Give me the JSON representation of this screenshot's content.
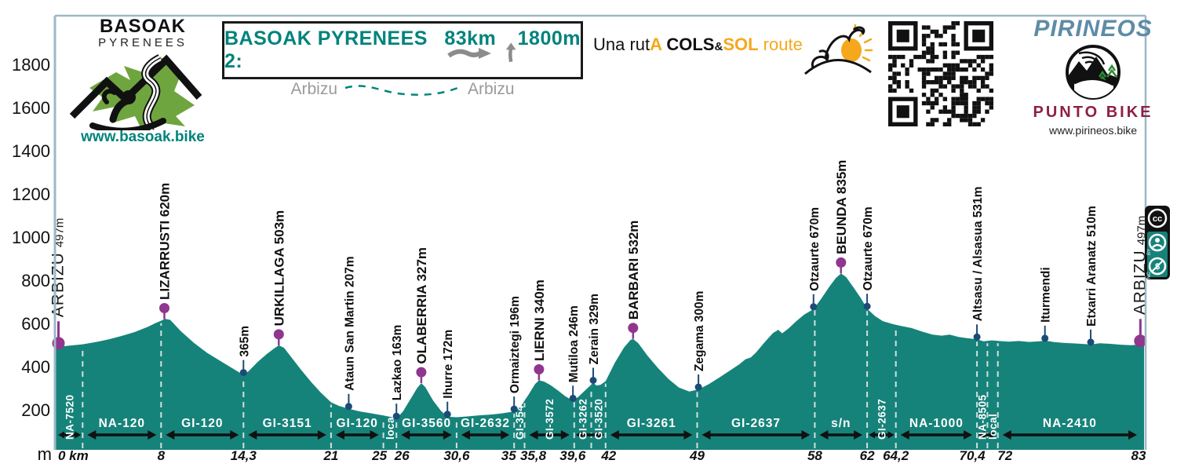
{
  "colors": {
    "teal": "#16837A",
    "title_teal": "#00837C",
    "frame": "#9DB8C6",
    "purple": "#90368F",
    "navy": "#1B4B77",
    "orange": "#F5A81C",
    "gray_text": "#9A9A9A",
    "arrow_gray": "#8C8C8C",
    "pirineos_blue": "#5E8CA7",
    "maroon": "#8E2045",
    "green": "#6FA53F",
    "dash": "#CFE0DF",
    "road_text": "#FFFFFF"
  },
  "brand_left": {
    "name": "BASOAK",
    "subtitle": "PYRENEES",
    "url": "www.basoak.bike"
  },
  "title_box": {
    "title": "BASOAK PYRENEES 2:",
    "distance": "83km",
    "elevation_gain": "1800m",
    "start": "Arbizu",
    "end": "Arbizu"
  },
  "tagline": {
    "part1": "Una rut",
    "part2": "A",
    "part3": " COLS",
    "amp": "&",
    "part4": "SOL",
    "part5": " route"
  },
  "brand_right": {
    "name": "PIRINEOS",
    "subtitle": "PUNTO BIKE",
    "url": "www.pirineos.bike"
  },
  "license_badge": {
    "cc": "cc",
    "by": "BY",
    "nc": "NC"
  },
  "chart_data": {
    "type": "area",
    "title": "BASOAK PYRENEES 2: 83km +1800m (Arbizu - Arbizu)",
    "xlabel": "km",
    "ylabel": "m",
    "xlim_km": [
      0,
      83
    ],
    "ylim": [
      0,
      1900
    ],
    "yticks": [
      200,
      400,
      600,
      800,
      1000,
      1200,
      1400,
      1600,
      1800
    ],
    "profile_km_elev": [
      [
        0,
        497
      ],
      [
        0.5,
        498
      ],
      [
        1,
        501
      ],
      [
        2,
        507
      ],
      [
        3,
        517
      ],
      [
        4,
        530
      ],
      [
        5,
        546
      ],
      [
        6,
        564
      ],
      [
        7,
        588
      ],
      [
        7.6,
        606
      ],
      [
        8,
        616
      ],
      [
        8.3,
        625
      ],
      [
        8.7,
        620
      ],
      [
        9.5,
        568
      ],
      [
        10.5,
        514
      ],
      [
        11.5,
        468
      ],
      [
        12.5,
        431
      ],
      [
        13.4,
        398
      ],
      [
        14,
        376
      ],
      [
        14.3,
        365
      ],
      [
        14.7,
        383
      ],
      [
        15.4,
        426
      ],
      [
        16.1,
        463
      ],
      [
        16.7,
        490
      ],
      [
        17,
        502
      ],
      [
        17.4,
        491
      ],
      [
        18,
        444
      ],
      [
        18.7,
        389
      ],
      [
        19.5,
        331
      ],
      [
        20.2,
        284
      ],
      [
        21,
        238
      ],
      [
        21.6,
        222
      ],
      [
        22.35,
        208
      ],
      [
        23.2,
        196
      ],
      [
        24.1,
        187
      ],
      [
        25,
        177
      ],
      [
        25.6,
        170
      ],
      [
        26,
        163
      ],
      [
        26.5,
        196
      ],
      [
        27.1,
        256
      ],
      [
        27.6,
        306
      ],
      [
        27.9,
        327
      ],
      [
        28.2,
        309
      ],
      [
        28.8,
        247
      ],
      [
        29.4,
        199
      ],
      [
        29.9,
        172
      ],
      [
        30.6,
        169
      ],
      [
        31.5,
        173
      ],
      [
        32.4,
        178
      ],
      [
        33.3,
        182
      ],
      [
        34.2,
        188
      ],
      [
        35,
        196
      ],
      [
        35.5,
        219
      ],
      [
        36.1,
        273
      ],
      [
        36.6,
        323
      ],
      [
        36.9,
        340
      ],
      [
        37.3,
        334
      ],
      [
        37.8,
        317
      ],
      [
        38.4,
        291
      ],
      [
        38.9,
        267
      ],
      [
        39.5,
        246
      ],
      [
        39.9,
        263
      ],
      [
        40.5,
        297
      ],
      [
        41.05,
        329
      ],
      [
        41.3,
        316
      ],
      [
        41.6,
        319
      ],
      [
        42,
        336
      ],
      [
        42.7,
        421
      ],
      [
        43.4,
        492
      ],
      [
        43.9,
        527
      ],
      [
        44.1,
        532
      ],
      [
        44.5,
        512
      ],
      [
        45.2,
        454
      ],
      [
        46,
        397
      ],
      [
        46.8,
        347
      ],
      [
        47.6,
        307
      ],
      [
        48.4,
        288
      ],
      [
        49.1,
        298
      ],
      [
        49.9,
        323
      ],
      [
        50.7,
        353
      ],
      [
        51.5,
        385
      ],
      [
        52.2,
        413
      ],
      [
        52.7,
        438
      ],
      [
        53.1,
        446
      ],
      [
        53.5,
        469
      ],
      [
        54.2,
        519
      ],
      [
        54.8,
        559
      ],
      [
        55.2,
        574
      ],
      [
        55.5,
        558
      ],
      [
        56,
        581
      ],
      [
        56.6,
        615
      ],
      [
        57.2,
        645
      ],
      [
        57.9,
        670
      ],
      [
        58.5,
        719
      ],
      [
        59.1,
        773
      ],
      [
        59.6,
        813
      ],
      [
        60,
        835
      ],
      [
        60.4,
        818
      ],
      [
        61,
        767
      ],
      [
        61.5,
        722
      ],
      [
        62,
        672
      ],
      [
        62.6,
        638
      ],
      [
        63.2,
        614
      ],
      [
        64,
        600
      ],
      [
        64.6,
        592
      ],
      [
        65.4,
        582
      ],
      [
        66.2,
        566
      ],
      [
        67,
        552
      ],
      [
        67.7,
        547
      ],
      [
        68.3,
        552
      ],
      [
        69,
        541
      ],
      [
        69.7,
        535
      ],
      [
        70.4,
        530
      ],
      [
        70.9,
        521
      ],
      [
        71.5,
        525
      ],
      [
        72,
        523
      ],
      [
        72.8,
        519
      ],
      [
        73.6,
        522
      ],
      [
        74.4,
        518
      ],
      [
        75.2,
        521
      ],
      [
        75.6,
        524
      ],
      [
        76.3,
        517
      ],
      [
        77.1,
        513
      ],
      [
        77.9,
        511
      ],
      [
        78.6,
        508
      ],
      [
        79.1,
        506
      ],
      [
        79.8,
        512
      ],
      [
        80.6,
        509
      ],
      [
        81.4,
        505
      ],
      [
        82.2,
        503
      ],
      [
        82.6,
        505
      ],
      [
        83,
        509
      ]
    ],
    "waypoints": [
      {
        "name": "ARBIZU",
        "elev_label": "497m",
        "km": 0.15,
        "elev": 497,
        "kind": "terminus"
      },
      {
        "name": "LIZARRUSTI",
        "elev_label": "620m",
        "km": 8.25,
        "elev": 620,
        "kind": "col"
      },
      {
        "name": "",
        "elev_label": "365m",
        "km": 14.3,
        "elev": 365,
        "kind": "town"
      },
      {
        "name": "URKILLAGA",
        "elev_label": "503m",
        "km": 17.0,
        "elev": 503,
        "kind": "col"
      },
      {
        "name": "Ataun San Martin",
        "elev_label": "207m",
        "km": 22.35,
        "elev": 207,
        "kind": "town"
      },
      {
        "name": "Lazkao",
        "elev_label": "163m",
        "km": 26.0,
        "elev": 163,
        "kind": "town"
      },
      {
        "name": "OLABERRIA",
        "elev_label": "327m",
        "km": 27.9,
        "elev": 327,
        "kind": "col"
      },
      {
        "name": "Ihurre",
        "elev_label": "172m",
        "km": 29.9,
        "elev": 172,
        "kind": "town"
      },
      {
        "name": "Ormaiztegi",
        "elev_label": "196m",
        "km": 35.0,
        "elev": 196,
        "kind": "town"
      },
      {
        "name": "LIERNI",
        "elev_label": "340m",
        "km": 36.9,
        "elev": 340,
        "kind": "col"
      },
      {
        "name": "Mutiloa",
        "elev_label": "246m",
        "km": 39.5,
        "elev": 246,
        "kind": "town"
      },
      {
        "name": "Zerain",
        "elev_label": "329m",
        "km": 41.05,
        "elev": 329,
        "kind": "town"
      },
      {
        "name": "BARBARI",
        "elev_label": "532m",
        "km": 44.1,
        "elev": 532,
        "kind": "col"
      },
      {
        "name": "Zegama",
        "elev_label": "300m",
        "km": 49.1,
        "elev": 300,
        "kind": "town"
      },
      {
        "name": "Otzaurte",
        "elev_label": "670m",
        "km": 57.9,
        "elev": 670,
        "kind": "town"
      },
      {
        "name": "BEUNDA",
        "elev_label": "835m",
        "km": 60.0,
        "elev": 835,
        "kind": "col"
      },
      {
        "name": "Otzaurte",
        "elev_label": "670m",
        "km": 62.0,
        "elev": 670,
        "kind": "town"
      },
      {
        "name": "Altsasu / Alsasua",
        "elev_label": "531m",
        "km": 70.4,
        "elev": 531,
        "kind": "town"
      },
      {
        "name": "Iturmendi",
        "elev_label": "",
        "km": 75.6,
        "elev": 524,
        "kind": "town"
      },
      {
        "name": "Etxarri Aranatz",
        "elev_label": "510m",
        "km": 79.1,
        "elev": 510,
        "kind": "town"
      },
      {
        "name": "ARBIZU",
        "elev_label": "497m",
        "km": 82.9,
        "elev": 497,
        "kind": "terminus"
      }
    ],
    "road_segments": [
      {
        "label": "NA-7520",
        "from_km": 0,
        "to_km": 2,
        "vertical": true
      },
      {
        "label": "NA-120",
        "from_km": 2,
        "to_km": 8,
        "vertical": false
      },
      {
        "label": "GI-120",
        "from_km": 8,
        "to_km": 14.3,
        "vertical": false
      },
      {
        "label": "GI-3151",
        "from_km": 14.3,
        "to_km": 21,
        "vertical": false
      },
      {
        "label": "GI-120",
        "from_km": 21,
        "to_km": 25,
        "vertical": false
      },
      {
        "label": "local",
        "from_km": 25,
        "to_km": 26,
        "vertical": true
      },
      {
        "label": "GI-3560",
        "from_km": 26,
        "to_km": 30.6,
        "vertical": false
      },
      {
        "label": "GI-2632",
        "from_km": 30.6,
        "to_km": 35,
        "vertical": false
      },
      {
        "label": "GI-3540",
        "from_km": 35,
        "to_km": 35.8,
        "vertical": true
      },
      {
        "label": "GI-3572",
        "from_km": 35.8,
        "to_km": 39.6,
        "vertical": true
      },
      {
        "label": "GI-3262",
        "from_km": 39.6,
        "to_km": 40.9,
        "vertical": true
      },
      {
        "label": "GI-3520",
        "from_km": 40.9,
        "to_km": 42,
        "vertical": true
      },
      {
        "label": "GI-3261",
        "from_km": 42,
        "to_km": 49,
        "vertical": false
      },
      {
        "label": "GI-2637",
        "from_km": 49,
        "to_km": 58,
        "vertical": false
      },
      {
        "label": "s/n",
        "from_km": 58,
        "to_km": 62,
        "vertical": false
      },
      {
        "label": "GI-2637",
        "from_km": 62,
        "to_km": 64.2,
        "vertical": true
      },
      {
        "label": "NA-1000",
        "from_km": 64.2,
        "to_km": 70.4,
        "vertical": false
      },
      {
        "label": "NA-8505",
        "from_km": 70.4,
        "to_km": 71.2,
        "vertical": true
      },
      {
        "label": "local",
        "from_km": 71.2,
        "to_km": 72,
        "vertical": true
      },
      {
        "label": "NA-2410",
        "from_km": 72,
        "to_km": 83,
        "vertical": false
      }
    ],
    "arrow_spans": [
      [
        0,
        2
      ],
      [
        2,
        8
      ],
      [
        8,
        14.3
      ],
      [
        14.3,
        21
      ],
      [
        21,
        25
      ],
      [
        26,
        30.6
      ],
      [
        30.6,
        35
      ],
      [
        35.8,
        39.6
      ],
      [
        39.6,
        42
      ],
      [
        42,
        49
      ],
      [
        49,
        58
      ],
      [
        58,
        62
      ],
      [
        62,
        64.2
      ],
      [
        64.2,
        70.4
      ],
      [
        70.4,
        72
      ],
      [
        72,
        83
      ]
    ],
    "dashed_lines_km": [
      2,
      8,
      14.3,
      21,
      25,
      26,
      30.6,
      35,
      35.8,
      39.6,
      40.9,
      42,
      49,
      58,
      62,
      64.2,
      70.4,
      71.2,
      72
    ],
    "km_ticks": [
      {
        "km": 0,
        "label": "0 km"
      },
      {
        "km": 8,
        "label": "8"
      },
      {
        "km": 14.3,
        "label": "14,3"
      },
      {
        "km": 21,
        "label": "21"
      },
      {
        "km": 25,
        "label": "25"
      },
      {
        "km": 26,
        "label": "26"
      },
      {
        "km": 30.6,
        "label": "30,6"
      },
      {
        "km": 35,
        "label": "35"
      },
      {
        "km": 35.8,
        "label": "35,8"
      },
      {
        "km": 39.6,
        "label": "39,6"
      },
      {
        "km": 42,
        "label": "42"
      },
      {
        "km": 49,
        "label": "49"
      },
      {
        "km": 58,
        "label": "58"
      },
      {
        "km": 62,
        "label": "62"
      },
      {
        "km": 64.2,
        "label": "64,2"
      },
      {
        "km": 70.4,
        "label": "70,4"
      },
      {
        "km": 72,
        "label": "72"
      },
      {
        "km": 83,
        "label": "83"
      }
    ],
    "legend_position": "none",
    "grid": false
  }
}
